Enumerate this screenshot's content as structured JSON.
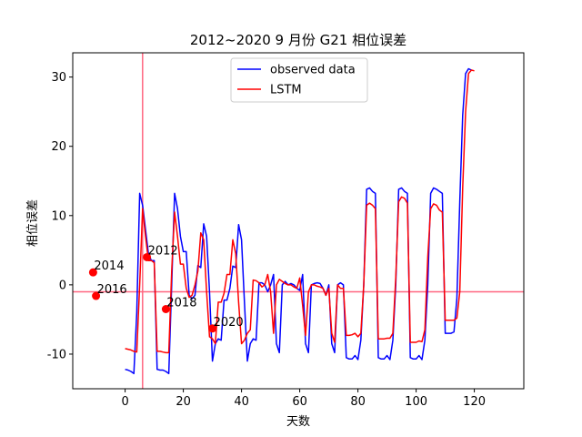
{
  "chart_data": {
    "type": "line",
    "title": "2012~2020 9 月份 G21 相位误差",
    "xlabel": "天数",
    "ylabel": "相位误差",
    "xlim": [
      -18,
      137
    ],
    "ylim": [
      -15,
      33.5
    ],
    "xticks": [
      0,
      20,
      40,
      60,
      80,
      100,
      120
    ],
    "yticks": [
      -10,
      0,
      10,
      20,
      30
    ],
    "legend_position": "top-center",
    "reference_lines": {
      "vertical_x": 6,
      "horizontal_y": -1,
      "color": "#ff6680"
    },
    "series": [
      {
        "name": "observed data",
        "color": "#0000ff",
        "points": [
          [
            0,
            -12.2
          ],
          [
            1,
            -12.3
          ],
          [
            2,
            -12.5
          ],
          [
            3,
            -12.8
          ],
          [
            4,
            -4
          ],
          [
            5,
            13.2
          ],
          [
            6,
            11.5
          ],
          [
            7,
            8
          ],
          [
            8,
            4.5
          ],
          [
            9,
            3.5
          ],
          [
            10,
            3.5
          ],
          [
            11,
            -12.2
          ],
          [
            12,
            -12.3
          ],
          [
            13,
            -12.3
          ],
          [
            14,
            -12.5
          ],
          [
            15,
            -12.8
          ],
          [
            16,
            0
          ],
          [
            17,
            13.2
          ],
          [
            18,
            11
          ],
          [
            19,
            7
          ],
          [
            20,
            4.8
          ],
          [
            21,
            4.8
          ],
          [
            22,
            -1.5
          ],
          [
            23,
            -2
          ],
          [
            24,
            -1.5
          ],
          [
            25,
            2.8
          ],
          [
            26,
            2.5
          ],
          [
            27,
            8.8
          ],
          [
            28,
            7
          ],
          [
            29,
            -1
          ],
          [
            30,
            -11
          ],
          [
            31,
            -8.5
          ],
          [
            32,
            -7.8
          ],
          [
            33,
            -8
          ],
          [
            34,
            -2.2
          ],
          [
            35,
            -2.2
          ],
          [
            36,
            -0.5
          ],
          [
            37,
            2.7
          ],
          [
            38,
            2.5
          ],
          [
            39,
            8.7
          ],
          [
            40,
            6.5
          ],
          [
            41,
            -2.5
          ],
          [
            42,
            -11
          ],
          [
            43,
            -8.5
          ],
          [
            44,
            -7.8
          ],
          [
            45,
            -8
          ],
          [
            46,
            0.3
          ],
          [
            47,
            0.3
          ],
          [
            48,
            0
          ],
          [
            49,
            -1
          ],
          [
            50,
            0
          ],
          [
            51,
            1.5
          ],
          [
            52,
            -8.5
          ],
          [
            53,
            -9.8
          ],
          [
            54,
            0
          ],
          [
            55,
            0.5
          ],
          [
            56,
            0
          ],
          [
            57,
            0.2
          ],
          [
            58,
            0
          ],
          [
            59,
            -0.5
          ],
          [
            60,
            -0.8
          ],
          [
            61,
            1.5
          ],
          [
            62,
            -8.5
          ],
          [
            63,
            -9.8
          ],
          [
            64,
            0
          ],
          [
            65,
            0.2
          ],
          [
            66,
            0.3
          ],
          [
            67,
            0.2
          ],
          [
            68,
            -0.5
          ],
          [
            69,
            -1.5
          ],
          [
            70,
            0
          ],
          [
            71,
            -8.5
          ],
          [
            72,
            -9.8
          ],
          [
            73,
            0
          ],
          [
            74,
            0.3
          ],
          [
            75,
            0
          ],
          [
            76,
            -10.5
          ],
          [
            77,
            -10.7
          ],
          [
            78,
            -10.7
          ],
          [
            79,
            -10.2
          ],
          [
            80,
            -10.8
          ],
          [
            81,
            -8
          ],
          [
            82,
            0
          ],
          [
            83,
            13.8
          ],
          [
            84,
            14
          ],
          [
            85,
            13.5
          ],
          [
            86,
            13.2
          ],
          [
            87,
            -10.5
          ],
          [
            88,
            -10.7
          ],
          [
            89,
            -10.7
          ],
          [
            90,
            -10.2
          ],
          [
            91,
            -10.8
          ],
          [
            92,
            -8
          ],
          [
            93,
            0
          ],
          [
            94,
            13.8
          ],
          [
            95,
            14
          ],
          [
            96,
            13.5
          ],
          [
            97,
            13.2
          ],
          [
            98,
            -10.5
          ],
          [
            99,
            -10.7
          ],
          [
            100,
            -10.7
          ],
          [
            101,
            -10.2
          ],
          [
            102,
            -10.8
          ],
          [
            103,
            -8
          ],
          [
            104,
            0
          ],
          [
            105,
            13.2
          ],
          [
            106,
            14
          ],
          [
            107,
            13.8
          ],
          [
            108,
            13.5
          ],
          [
            109,
            13.2
          ],
          [
            110,
            -7
          ],
          [
            111,
            -7
          ],
          [
            112,
            -7
          ],
          [
            113,
            -6.8
          ],
          [
            114,
            -2
          ],
          [
            115,
            12
          ],
          [
            116,
            24.5
          ],
          [
            117,
            30.5
          ],
          [
            118,
            31.2
          ],
          [
            119,
            31
          ]
        ]
      },
      {
        "name": "LSTM",
        "color": "#ff0000",
        "points": [
          [
            0,
            -9.2
          ],
          [
            1,
            -9.3
          ],
          [
            2,
            -9.4
          ],
          [
            3,
            -9.6
          ],
          [
            4,
            -9.7
          ],
          [
            5,
            0
          ],
          [
            6,
            11
          ],
          [
            7,
            7
          ],
          [
            8,
            3.5
          ],
          [
            9,
            3.5
          ],
          [
            10,
            3.2
          ],
          [
            11,
            -9.6
          ],
          [
            12,
            -9.6
          ],
          [
            13,
            -9.7
          ],
          [
            14,
            -9.8
          ],
          [
            15,
            -9.8
          ],
          [
            16,
            2
          ],
          [
            17,
            10.5
          ],
          [
            18,
            7
          ],
          [
            19,
            3
          ],
          [
            20,
            3
          ],
          [
            21,
            -0.5
          ],
          [
            22,
            -1.8
          ],
          [
            23,
            -1.5
          ],
          [
            24,
            0
          ],
          [
            25,
            2
          ],
          [
            26,
            7.5
          ],
          [
            27,
            6.5
          ],
          [
            28,
            -1
          ],
          [
            29,
            -7.5
          ],
          [
            30,
            -7.8
          ],
          [
            31,
            -8.5
          ],
          [
            32,
            -2.5
          ],
          [
            33,
            -2.5
          ],
          [
            34,
            -1.2
          ],
          [
            35,
            1.5
          ],
          [
            36,
            1.5
          ],
          [
            37,
            6.5
          ],
          [
            38,
            4.5
          ],
          [
            39,
            -2.5
          ],
          [
            40,
            -8.5
          ],
          [
            41,
            -8
          ],
          [
            42,
            -7
          ],
          [
            43,
            -6.5
          ],
          [
            44,
            0.7
          ],
          [
            45,
            0.6
          ],
          [
            46,
            0.3
          ],
          [
            47,
            -0.3
          ],
          [
            48,
            0
          ],
          [
            49,
            1.5
          ],
          [
            50,
            -1
          ],
          [
            51,
            -7
          ],
          [
            52,
            0
          ],
          [
            53,
            0.8
          ],
          [
            54,
            0.5
          ],
          [
            55,
            0.2
          ],
          [
            56,
            0
          ],
          [
            57,
            0
          ],
          [
            58,
            -0.3
          ],
          [
            59,
            -0.5
          ],
          [
            60,
            1
          ],
          [
            61,
            -3
          ],
          [
            62,
            -7.3
          ],
          [
            63,
            -1
          ],
          [
            64,
            0
          ],
          [
            65,
            0
          ],
          [
            66,
            -0.2
          ],
          [
            67,
            -0.3
          ],
          [
            68,
            -0.5
          ],
          [
            69,
            -1.5
          ],
          [
            70,
            -0.5
          ],
          [
            71,
            -7
          ],
          [
            72,
            -8.3
          ],
          [
            73,
            0
          ],
          [
            74,
            -0.5
          ],
          [
            75,
            -0.5
          ],
          [
            76,
            -7.3
          ],
          [
            77,
            -7.3
          ],
          [
            78,
            -7.2
          ],
          [
            79,
            -7
          ],
          [
            80,
            -7.5
          ],
          [
            81,
            -7
          ],
          [
            82,
            0
          ],
          [
            83,
            11.5
          ],
          [
            84,
            11.8
          ],
          [
            85,
            11.5
          ],
          [
            86,
            11
          ],
          [
            87,
            -7.8
          ],
          [
            88,
            -7.8
          ],
          [
            89,
            -7.8
          ],
          [
            90,
            -7.7
          ],
          [
            91,
            -7.7
          ],
          [
            92,
            -7
          ],
          [
            93,
            1
          ],
          [
            94,
            12
          ],
          [
            95,
            12.7
          ],
          [
            96,
            12.5
          ],
          [
            97,
            11.8
          ],
          [
            98,
            -8.3
          ],
          [
            99,
            -8.3
          ],
          [
            100,
            -8.3
          ],
          [
            101,
            -8.1
          ],
          [
            102,
            -8.2
          ],
          [
            103,
            -6.5
          ],
          [
            104,
            4
          ],
          [
            105,
            11
          ],
          [
            106,
            11.7
          ],
          [
            107,
            11.5
          ],
          [
            108,
            10.8
          ],
          [
            109,
            10.5
          ],
          [
            110,
            -5.1
          ],
          [
            111,
            -5.1
          ],
          [
            112,
            -5.1
          ],
          [
            113,
            -5.1
          ],
          [
            114,
            -4.8
          ],
          [
            115,
            -1
          ],
          [
            116,
            14
          ],
          [
            117,
            25
          ],
          [
            118,
            30.5
          ],
          [
            119,
            31
          ],
          [
            120,
            30.9
          ]
        ]
      }
    ],
    "annotations": [
      {
        "label": "2012",
        "x": 7.5,
        "y": 4.0
      },
      {
        "label": "2014",
        "x": -11,
        "y": 1.8
      },
      {
        "label": "2016",
        "x": -10,
        "y": -1.6
      },
      {
        "label": "2018",
        "x": 14,
        "y": -3.5
      },
      {
        "label": "2020",
        "x": 30,
        "y": -6.3
      }
    ]
  }
}
